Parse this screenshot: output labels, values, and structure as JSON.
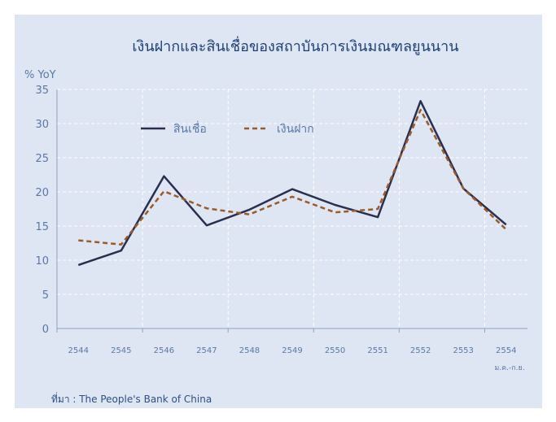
{
  "chart_data": {
    "type": "line",
    "title": "เงินฝากและสินเชื่อของสถาบันการเงินมณฑลยูนนาน",
    "ylabel": "% YoY",
    "xlabel": "",
    "ylim": [
      0,
      35
    ],
    "yticks": [
      0,
      5,
      10,
      15,
      20,
      25,
      30,
      35
    ],
    "categories": [
      "2544",
      "2545",
      "2546",
      "2547",
      "2548",
      "2549",
      "2550",
      "2551",
      "2552",
      "2553",
      "2554"
    ],
    "last_category_note": "ม.ค.-ก.ย.",
    "series": [
      {
        "name": "สินเชื่อ",
        "values": [
          9.3,
          11.4,
          22.3,
          15.1,
          17.4,
          20.4,
          18.1,
          16.3,
          33.3,
          20.5,
          15.2
        ],
        "color": "#2b2f4f",
        "dash": "solid"
      },
      {
        "name": "เงินฝาก",
        "values": [
          12.9,
          12.3,
          20.1,
          17.6,
          16.7,
          19.3,
          17.0,
          17.5,
          32.0,
          20.5,
          14.5
        ],
        "color": "#9c5a2a",
        "dash": "dashed"
      }
    ],
    "grid": true,
    "legend_position": "top-left inside plot",
    "source": "ที่มา : The People's Bank of China"
  }
}
